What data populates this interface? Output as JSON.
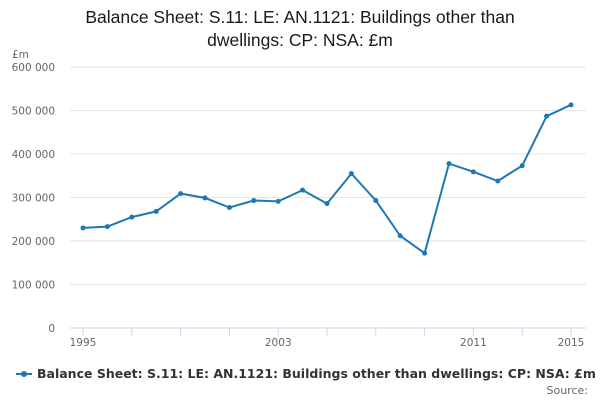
{
  "chart_data": {
    "type": "line",
    "title": "Balance Sheet: S.11: LE: AN.1121: Buildings other than dwellings: CP: NSA: £m",
    "title_lines": [
      "Balance Sheet: S.11: LE: AN.1121: Buildings other than",
      "dwellings: CP: NSA: £m"
    ],
    "ylabel": "£m",
    "xlabel": "",
    "ylim": [
      0,
      600000
    ],
    "yticks": [
      0,
      100000,
      200000,
      300000,
      400000,
      500000,
      600000
    ],
    "ytick_labels": [
      "0",
      "100 000",
      "200 000",
      "300 000",
      "400 000",
      "500 000",
      "600 000"
    ],
    "xlim": [
      1995,
      2015
    ],
    "xticks": [
      1995,
      2003,
      2011,
      2015
    ],
    "xtick_labels": [
      "1995",
      "2003",
      "2011",
      "2015"
    ],
    "grid": "horizontal",
    "legend": "bottom",
    "series": [
      {
        "name": "Balance Sheet: S.11: LE: AN.1121: Buildings other than dwellings: CP: NSA: £m",
        "color": "#1f77b4",
        "x": [
          1995,
          1996,
          1997,
          1998,
          1999,
          2000,
          2001,
          2002,
          2003,
          2004,
          2005,
          2006,
          2007,
          2008,
          2009,
          2010,
          2011,
          2012,
          2013,
          2014,
          2015
        ],
        "values": [
          230000,
          233000,
          255000,
          268000,
          309000,
          299000,
          277000,
          293000,
          291000,
          317000,
          286000,
          355000,
          293000,
          212000,
          172000,
          378000,
          359000,
          338000,
          373000,
          487000,
          513000
        ]
      }
    ]
  },
  "source_label": "Source:"
}
